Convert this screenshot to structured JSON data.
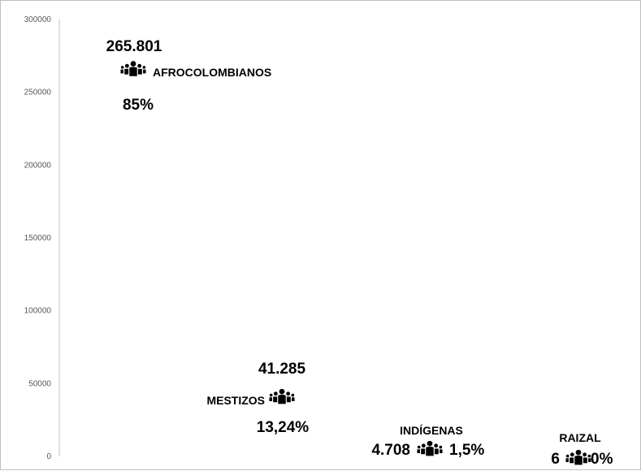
{
  "chart_data": {
    "type": "scatter",
    "ylim": [
      0,
      300000
    ],
    "yticks": [
      "0",
      "50000",
      "100000",
      "150000",
      "200000",
      "250000",
      "300000"
    ],
    "grid": false,
    "colors": {
      "axis": "#bfbfbf",
      "text": "#000000",
      "tick": "#595959",
      "icon": "#000000"
    },
    "points": [
      {
        "label": "AFROCOLOMBIANOS",
        "value": 265801,
        "value_text": "265.801",
        "percent": "85%",
        "icon": "people-group-icon"
      },
      {
        "label": "MESTIZOS",
        "value": 41285,
        "value_text": "41.285",
        "percent": "13,24%",
        "icon": "people-group-icon"
      },
      {
        "label": "INDÍGENAS",
        "value": 4708,
        "value_text": "4.708",
        "percent": "1,5%",
        "icon": "people-group-icon"
      },
      {
        "label": "RAIZAL",
        "value": 6,
        "value_text": "6",
        "percent": "0%",
        "icon": "people-group-icon"
      }
    ]
  }
}
